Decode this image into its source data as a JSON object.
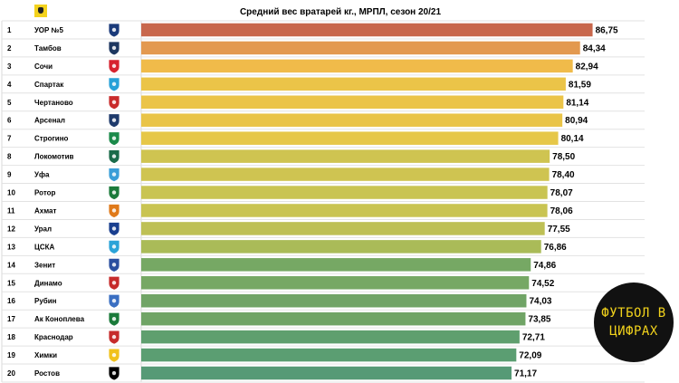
{
  "chart_data": {
    "type": "bar",
    "orientation": "horizontal",
    "title": "Средний вес вратарей кг., МРПЛ, сезон 20/21",
    "xlim": [
      0,
      87
    ],
    "grid": false,
    "categories": [
      "УОР №5",
      "Тамбов",
      "Сочи",
      "Спартак",
      "Чертаново",
      "Арсенал",
      "Строгино",
      "Локомотив",
      "Уфа",
      "Ротор",
      "Ахмат",
      "Урал",
      "ЦСКА",
      "Зенит",
      "Динамо",
      "Рубин",
      "Ак Коноплева",
      "Краснодар",
      "Химки",
      "Ростов"
    ],
    "ranks": [
      "1",
      "2",
      "3",
      "4",
      "5",
      "6",
      "7",
      "8",
      "9",
      "10",
      "11",
      "12",
      "13",
      "14",
      "15",
      "16",
      "17",
      "18",
      "19",
      "20"
    ],
    "values": [
      86.75,
      84.34,
      82.94,
      81.59,
      81.14,
      80.94,
      80.14,
      78.5,
      78.4,
      78.07,
      78.06,
      77.55,
      76.86,
      74.86,
      74.52,
      74.03,
      73.85,
      72.71,
      72.09,
      71.17
    ],
    "value_labels": [
      "86,75",
      "84,34",
      "82,94",
      "81,59",
      "81,14",
      "80,94",
      "80,14",
      "78,50",
      "78,40",
      "78,07",
      "78,06",
      "77,55",
      "76,86",
      "74,86",
      "74,52",
      "74,03",
      "73,85",
      "72,71",
      "72,09",
      "71,17"
    ],
    "bar_colors": [
      "#c8674c",
      "#e3994f",
      "#f0bb4a",
      "#ebc448",
      "#ebc448",
      "#e9c448",
      "#e6c748",
      "#cfc451",
      "#cfc451",
      "#c9c452",
      "#c9c452",
      "#bec055",
      "#aabb58",
      "#76a864",
      "#76a864",
      "#70a466",
      "#70a466",
      "#5f9f6e",
      "#5b9e72",
      "#569a76"
    ]
  },
  "logo_icons": [
    "league-logo-icon",
    "uor5-logo-icon",
    "tambov-logo-icon",
    "sochi-logo-icon",
    "spartak-logo-icon",
    "chertanovo-logo-icon",
    "arsenal-logo-icon",
    "strogino-logo-icon",
    "lokomotiv-logo-icon",
    "ufa-logo-icon",
    "rotor-logo-icon",
    "akhmat-logo-icon",
    "ural-logo-icon",
    "cska-logo-icon",
    "zenit-logo-icon",
    "dinamo-logo-icon",
    "rubin-logo-icon",
    "ak-konopleva-logo-icon",
    "krasnodar-logo-icon",
    "khimki-logo-icon",
    "rostov-logo-icon"
  ],
  "logo_colors": [
    "#2a6cc2",
    "#1a3a7a",
    "#1e3760",
    "#d7232f",
    "#27a1d8",
    "#c92b2b",
    "#1e3a6b",
    "#1b8a4a",
    "#1a6b4a",
    "#3a9ed8",
    "#1b7a3b",
    "#e07a1a",
    "#1a3f8f",
    "#2aa3d8",
    "#2a4fa0",
    "#c62b2b",
    "#3a6fc2",
    "#1a7a3a",
    "#c62b2b",
    "#f1c21c"
  ],
  "badge": {
    "text": "ФУТБОЛ В\nЦИФРАХ"
  }
}
